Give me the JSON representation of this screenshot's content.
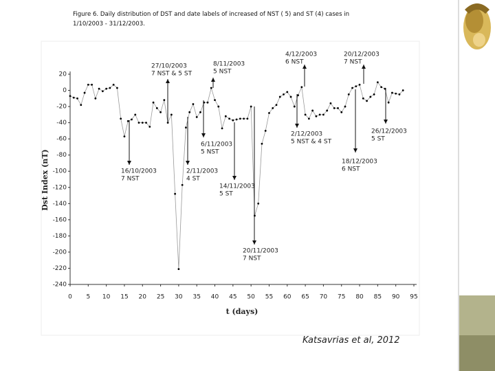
{
  "caption": "Figure 6. Daily distribution of DST and date labels of increased of NST ( 5) and ST (4) cases in 1/10/2003 - 31/12/2003.",
  "citation": "Katsavrias et al, 2012",
  "chart_data": {
    "type": "line",
    "xlabel": "t (days)",
    "ylabel": "Dst Index (nT)",
    "color": "#000000",
    "x": [
      0,
      1,
      2,
      3,
      4,
      5,
      6,
      7,
      8,
      9,
      10,
      11,
      12,
      13,
      14,
      15,
      16,
      17,
      18,
      19,
      20,
      21,
      22,
      23,
      24,
      25,
      26,
      27,
      28,
      29,
      30,
      31,
      32,
      33,
      34,
      35,
      36,
      37,
      38,
      39,
      40,
      41,
      42,
      43,
      44,
      45,
      46,
      47,
      48,
      49,
      50,
      51,
      52,
      53,
      54,
      55,
      56,
      57,
      58,
      59,
      60,
      61,
      62,
      63,
      64,
      65,
      66,
      67,
      68,
      69,
      70,
      71,
      72,
      73,
      74,
      75,
      76,
      77,
      78,
      79,
      80,
      81,
      82,
      83,
      84,
      85,
      86,
      87,
      88,
      89,
      90,
      91,
      92
    ],
    "values": [
      -7,
      -9,
      -10,
      -18,
      -3,
      7,
      7,
      -10,
      2,
      -1,
      2,
      3,
      7,
      3,
      -35,
      -57,
      -38,
      -36,
      -30,
      -40,
      -40,
      -40,
      -45,
      -15,
      -22,
      -27,
      -12,
      -40,
      -30,
      -128,
      -221,
      -117,
      -46,
      -27,
      -17,
      -33,
      -27,
      -15,
      -15,
      3,
      -12,
      -20,
      -47,
      -32,
      -35,
      -37,
      -36,
      -35,
      -35,
      -35,
      -20,
      -155,
      -140,
      -66,
      -50,
      -28,
      -22,
      -18,
      -8,
      -5,
      -2,
      -8,
      -20,
      -6,
      4,
      -30,
      -35,
      -25,
      -32,
      -30,
      -30,
      -25,
      -16,
      -22,
      -22,
      -27,
      -20,
      -5,
      3,
      5,
      7,
      -10,
      -13,
      -8,
      -5,
      10,
      4,
      2,
      -15,
      -3,
      -4,
      -5,
      0
    ],
    "xlim": [
      0,
      95
    ],
    "xticks": [
      0,
      5,
      10,
      15,
      20,
      25,
      30,
      35,
      40,
      45,
      50,
      55,
      60,
      65,
      70,
      75,
      80,
      85,
      90,
      95
    ],
    "ylim": [
      -240,
      20
    ],
    "yticks": [
      20,
      0,
      -20,
      -40,
      -60,
      -80,
      -100,
      -120,
      -140,
      -160,
      -180,
      -200,
      -220,
      -240
    ],
    "annotations": [
      {
        "lines": [
          "27/10/2003",
          "7 NST & 5 ST"
        ]
      },
      {
        "lines": [
          "8/11/2003",
          "5 NST"
        ]
      },
      {
        "lines": [
          "4/12/2003",
          "6 NST"
        ]
      },
      {
        "lines": [
          "20/12/2003",
          "7 NST"
        ]
      },
      {
        "lines": [
          "16/10/2003",
          "7 NST"
        ]
      },
      {
        "lines": [
          "6/11/2003",
          "5 NST"
        ]
      },
      {
        "lines": [
          "2/11/2003",
          "4 ST"
        ]
      },
      {
        "lines": [
          "14/11/2003",
          "5 ST"
        ]
      },
      {
        "lines": [
          "20/11/2003",
          "7 NST"
        ]
      },
      {
        "lines": [
          "2/12/2003",
          "5 NST & 4 ST"
        ]
      },
      {
        "lines": [
          "18/12/2003",
          "6 NST"
        ]
      },
      {
        "lines": [
          "26/12/2003",
          "5 ST"
        ]
      }
    ]
  }
}
